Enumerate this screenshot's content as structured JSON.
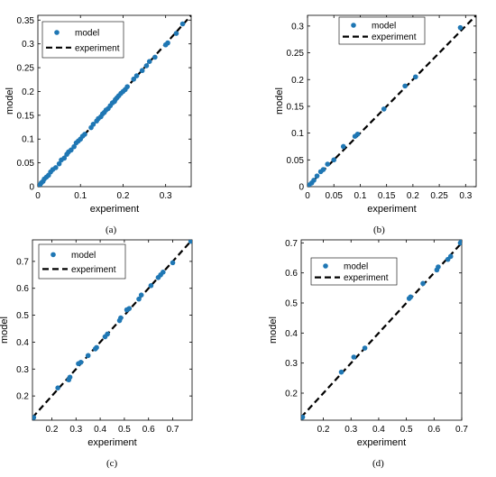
{
  "figure": {
    "captions": [
      "(a)",
      "(b)",
      "(c)",
      "(d)"
    ]
  },
  "colors": {
    "marker": "#1f77b4",
    "line": "#000000",
    "axes": "#000000"
  },
  "chart_data": [
    {
      "type": "scatter",
      "xlabel": "experiment",
      "ylabel": "model",
      "xlim": [
        0,
        0.36
      ],
      "ylim": [
        0,
        0.36
      ],
      "xticks": [
        0,
        0.1,
        0.2,
        0.3
      ],
      "xtick_labels": [
        "0",
        "0.1",
        "0.2",
        "0.3"
      ],
      "yticks": [
        0,
        0.05,
        0.1,
        0.15,
        0.2,
        0.25,
        0.3,
        0.35
      ],
      "ytick_labels": [
        "0",
        "0.05",
        "0.1",
        "0.15",
        "0.2",
        "0.25",
        "0.3",
        "0.35"
      ],
      "legend": {
        "position": "top-left",
        "entries": [
          "model",
          "experiment"
        ]
      },
      "series": [
        {
          "name": "model",
          "style": "markers",
          "x": [
            0.002,
            0.005,
            0.008,
            0.012,
            0.015,
            0.02,
            0.025,
            0.03,
            0.035,
            0.042,
            0.05,
            0.055,
            0.062,
            0.068,
            0.072,
            0.078,
            0.085,
            0.09,
            0.095,
            0.1,
            0.105,
            0.11,
            0.125,
            0.13,
            0.138,
            0.142,
            0.148,
            0.152,
            0.156,
            0.16,
            0.165,
            0.17,
            0.175,
            0.18,
            0.182,
            0.186,
            0.19,
            0.195,
            0.2,
            0.205,
            0.21,
            0.225,
            0.232,
            0.245,
            0.255,
            0.262,
            0.275,
            0.3,
            0.305,
            0.325,
            0.34
          ],
          "y": [
            0.002,
            0.004,
            0.008,
            0.011,
            0.016,
            0.02,
            0.024,
            0.031,
            0.036,
            0.04,
            0.048,
            0.056,
            0.06,
            0.068,
            0.073,
            0.077,
            0.084,
            0.092,
            0.096,
            0.1,
            0.106,
            0.11,
            0.124,
            0.131,
            0.138,
            0.143,
            0.147,
            0.153,
            0.156,
            0.161,
            0.164,
            0.17,
            0.176,
            0.179,
            0.183,
            0.187,
            0.191,
            0.196,
            0.2,
            0.204,
            0.21,
            0.226,
            0.233,
            0.244,
            0.254,
            0.263,
            0.272,
            0.298,
            0.302,
            0.322,
            0.342
          ]
        },
        {
          "name": "experiment",
          "style": "dashed-line",
          "x": [
            0,
            0.36
          ],
          "y": [
            0,
            0.36
          ]
        }
      ]
    },
    {
      "type": "scatter",
      "xlabel": "experiment",
      "ylabel": "model",
      "xlim": [
        0,
        0.32
      ],
      "ylim": [
        0,
        0.32
      ],
      "xticks": [
        0,
        0.05,
        0.1,
        0.15,
        0.2,
        0.25,
        0.3
      ],
      "xtick_labels": [
        "0",
        "0.05",
        "0.1",
        "0.15",
        "0.2",
        "0.25",
        "0.3"
      ],
      "yticks": [
        0,
        0.05,
        0.1,
        0.15,
        0.2,
        0.25,
        0.3
      ],
      "ytick_labels": [
        "0",
        "0.05",
        "0.1",
        "0.15",
        "0.2",
        "0.25",
        "0.3"
      ],
      "legend": {
        "position": "top-center",
        "entries": [
          "model",
          "experiment"
        ]
      },
      "series": [
        {
          "name": "model",
          "style": "markers",
          "x": [
            0.003,
            0.008,
            0.012,
            0.018,
            0.025,
            0.03,
            0.038,
            0.05,
            0.068,
            0.09,
            0.095,
            0.145,
            0.185,
            0.205,
            0.29
          ],
          "y": [
            0.003,
            0.007,
            0.012,
            0.02,
            0.028,
            0.032,
            0.042,
            0.05,
            0.075,
            0.094,
            0.098,
            0.145,
            0.188,
            0.205,
            0.297
          ]
        },
        {
          "name": "experiment",
          "style": "dashed-line",
          "x": [
            0,
            0.32
          ],
          "y": [
            0,
            0.32
          ]
        }
      ]
    },
    {
      "type": "scatter",
      "xlabel": "experiment",
      "ylabel": "model",
      "xlim": [
        0.12,
        0.78
      ],
      "ylim": [
        0.11,
        0.78
      ],
      "xticks": [
        0.2,
        0.3,
        0.4,
        0.5,
        0.6,
        0.7
      ],
      "xtick_labels": [
        "0.2",
        "0.3",
        "0.4",
        "0.5",
        "0.6",
        "0.7"
      ],
      "yticks": [
        0.2,
        0.3,
        0.4,
        0.5,
        0.6,
        0.7
      ],
      "ytick_labels": [
        "0.2",
        "0.3",
        "0.4",
        "0.5",
        "0.6",
        "0.7"
      ],
      "legend": {
        "position": "top-left",
        "entries": [
          "model",
          "experiment"
        ]
      },
      "series": [
        {
          "name": "model",
          "style": "markers",
          "x": [
            0.125,
            0.225,
            0.27,
            0.275,
            0.31,
            0.32,
            0.35,
            0.38,
            0.385,
            0.42,
            0.43,
            0.48,
            0.485,
            0.51,
            0.52,
            0.56,
            0.57,
            0.61,
            0.64,
            0.65,
            0.66,
            0.7,
            0.775
          ],
          "y": [
            0.12,
            0.23,
            0.26,
            0.27,
            0.32,
            0.325,
            0.35,
            0.375,
            0.38,
            0.42,
            0.43,
            0.48,
            0.49,
            0.52,
            0.525,
            0.56,
            0.575,
            0.61,
            0.64,
            0.65,
            0.66,
            0.695,
            0.775
          ]
        },
        {
          "name": "experiment",
          "style": "dashed-line",
          "x": [
            0.12,
            0.78
          ],
          "y": [
            0.12,
            0.78
          ]
        }
      ]
    },
    {
      "type": "scatter",
      "xlabel": "experiment",
      "ylabel": "model",
      "xlim": [
        0.12,
        0.7
      ],
      "ylim": [
        0.11,
        0.71
      ],
      "xticks": [
        0.2,
        0.3,
        0.4,
        0.5,
        0.6,
        0.7
      ],
      "xtick_labels": [
        "0.2",
        "0.3",
        "0.4",
        "0.5",
        "0.6",
        "0.7"
      ],
      "yticks": [
        0.2,
        0.3,
        0.4,
        0.5,
        0.6,
        0.7
      ],
      "ytick_labels": [
        "0.2",
        "0.3",
        "0.4",
        "0.5",
        "0.6",
        "0.7"
      ],
      "legend": {
        "position": "top-left",
        "entries": [
          "model",
          "experiment"
        ]
      },
      "series": [
        {
          "name": "model",
          "style": "markers",
          "x": [
            0.125,
            0.265,
            0.31,
            0.35,
            0.51,
            0.515,
            0.56,
            0.61,
            0.615,
            0.65,
            0.66,
            0.695,
            0.7
          ],
          "y": [
            0.12,
            0.27,
            0.32,
            0.35,
            0.515,
            0.52,
            0.565,
            0.61,
            0.62,
            0.645,
            0.655,
            0.7,
            0.705
          ]
        },
        {
          "name": "experiment",
          "style": "dashed-line",
          "x": [
            0.12,
            0.7
          ],
          "y": [
            0.12,
            0.7
          ]
        }
      ]
    }
  ]
}
